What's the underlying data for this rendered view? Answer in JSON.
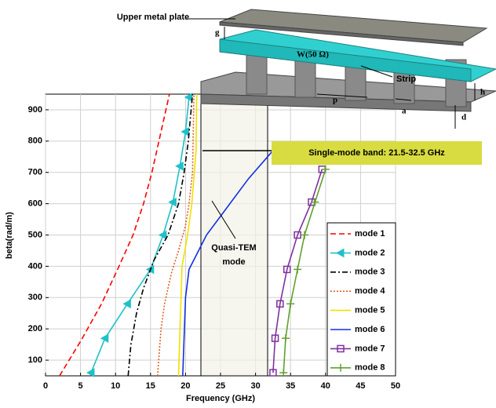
{
  "chart_data": {
    "type": "line",
    "xlabel": "Frequency (GHz)",
    "ylabel": "beta(rad/m)",
    "xlim": [
      0,
      50
    ],
    "ylim": [
      50,
      950
    ],
    "xticks": [
      0,
      5,
      10,
      15,
      20,
      25,
      30,
      35,
      40,
      45,
      50
    ],
    "yticks": [
      100,
      200,
      300,
      400,
      500,
      600,
      700,
      800,
      900
    ],
    "grid": true,
    "legend": "lower right",
    "series": [
      {
        "name": "mode 1",
        "color": "#ff0000",
        "style": "dashed",
        "marker": "none",
        "x": [
          2,
          5,
          8,
          10.5,
          12.5,
          14,
          15.2,
          16.2,
          17.2,
          17.7
        ],
        "values": [
          50,
          160,
          280,
          400,
          500,
          600,
          700,
          800,
          900,
          950
        ]
      },
      {
        "name": "mode 2",
        "color": "#20c0c8",
        "style": "solid",
        "marker": "triangle",
        "x": [
          6.5,
          8.5,
          11.7,
          15,
          16.8,
          18.2,
          19.2,
          20,
          20.5
        ],
        "values": [
          60,
          170,
          280,
          390,
          500,
          605,
          720,
          830,
          940
        ]
      },
      {
        "name": "mode 3",
        "color": "#000000",
        "style": "dashdot",
        "marker": "none",
        "x": [
          11.8,
          12.2,
          13,
          14,
          15.5,
          17.5,
          19,
          19.8,
          20.4,
          20.8,
          21
        ],
        "values": [
          50,
          150,
          250,
          330,
          420,
          500,
          600,
          700,
          800,
          900,
          950
        ]
      },
      {
        "name": "mode 4",
        "color": "#e06020",
        "style": "dotted",
        "marker": "none",
        "x": [
          16,
          16.5,
          17,
          18,
          19,
          20,
          20.5,
          21,
          21.2
        ],
        "values": [
          50,
          200,
          280,
          380,
          450,
          530,
          600,
          700,
          950
        ]
      },
      {
        "name": "mode 5",
        "color": "#f0e000",
        "style": "solid",
        "marker": "none",
        "x": [
          19,
          19.5,
          20.3,
          20.9,
          21.5,
          21.6
        ],
        "values": [
          50,
          400,
          500,
          600,
          770,
          950
        ]
      },
      {
        "name": "mode 6",
        "color": "#1030e0",
        "style": "solid",
        "marker": "none",
        "x": [
          19.6,
          20,
          20.5,
          23,
          26,
          29,
          32.5
        ],
        "values": [
          50,
          300,
          390,
          500,
          590,
          680,
          770
        ]
      },
      {
        "name": "mode 7",
        "color": "#8030a0",
        "style": "solid",
        "marker": "square",
        "x": [
          32.5,
          32.8,
          33.5,
          34.5,
          36,
          38,
          39.5
        ],
        "values": [
          60,
          170,
          280,
          390,
          500,
          605,
          710
        ]
      },
      {
        "name": "mode 8",
        "color": "#60a030",
        "style": "solid",
        "marker": "plus",
        "x": [
          34,
          34.3,
          35,
          36,
          37,
          38.5,
          40
        ],
        "values": [
          60,
          170,
          280,
          390,
          500,
          605,
          710
        ]
      }
    ],
    "annotations": [
      "Single-mode band: 21.5-32.5 GHz",
      "Quasi-TEM mode"
    ]
  },
  "diagram_labels": {
    "plate": "Upper metal plate",
    "gap": "g",
    "width": "W(50 Ω)",
    "strip": "Strip",
    "period": "p",
    "pin": "a",
    "height": "h",
    "depth": "d"
  }
}
